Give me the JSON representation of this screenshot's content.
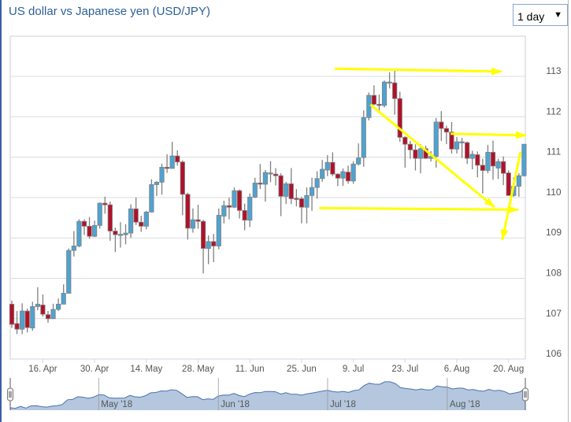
{
  "header": {
    "title": "US dollar vs Japanese yen (USD/JPY)",
    "range_select": "1 day"
  },
  "colors": {
    "up": "#4ea3d1",
    "down": "#b0112a",
    "wick": "#808080",
    "grid": "#dcdcdc",
    "annotation": "#ffff00",
    "navigator_fill": "#b5c7de",
    "navigator_line": "#4a72b0"
  },
  "chart_data": {
    "type": "candlestick",
    "title": "US dollar vs Japanese yen (USD/JPY)",
    "ylim": [
      106,
      113.2
    ],
    "yticks": [
      106,
      107,
      108,
      109,
      110,
      111,
      112,
      113
    ],
    "grid": true,
    "xticks": [
      {
        "index": 6,
        "label": "16. Apr"
      },
      {
        "index": 16,
        "label": "30. Apr"
      },
      {
        "index": 26,
        "label": "14. May"
      },
      {
        "index": 36,
        "label": "28. May"
      },
      {
        "index": 46,
        "label": "11. Jun"
      },
      {
        "index": 56,
        "label": "25. Jun"
      },
      {
        "index": 66,
        "label": "9. Jul"
      },
      {
        "index": 76,
        "label": "23. Jul"
      },
      {
        "index": 86,
        "label": "6. Aug"
      },
      {
        "index": 96,
        "label": "20. Aug"
      }
    ],
    "ohlc": [
      [
        107.36,
        107.45,
        106.77,
        106.86
      ],
      [
        106.88,
        107.19,
        106.62,
        106.74
      ],
      [
        106.74,
        107.38,
        106.62,
        107.19
      ],
      [
        107.19,
        107.25,
        106.66,
        106.78
      ],
      [
        106.77,
        107.42,
        106.7,
        107.3
      ],
      [
        107.3,
        107.78,
        107.21,
        107.36
      ],
      [
        107.34,
        107.6,
        107.05,
        107.11
      ],
      [
        107.1,
        107.19,
        106.9,
        107.0
      ],
      [
        107.0,
        107.37,
        107.0,
        107.23
      ],
      [
        107.23,
        107.5,
        107.19,
        107.36
      ],
      [
        107.36,
        107.85,
        107.36,
        107.63
      ],
      [
        107.63,
        108.74,
        107.63,
        108.69
      ],
      [
        108.69,
        109.17,
        108.54,
        108.8
      ],
      [
        108.8,
        109.46,
        108.77,
        109.41
      ],
      [
        109.41,
        109.46,
        109.07,
        109.29
      ],
      [
        109.29,
        109.52,
        108.98,
        109.04
      ],
      [
        109.04,
        109.43,
        109.02,
        109.31
      ],
      [
        109.31,
        109.88,
        109.23,
        109.86
      ],
      [
        109.86,
        110.02,
        109.6,
        109.82
      ],
      [
        109.82,
        109.9,
        108.93,
        109.17
      ],
      [
        109.17,
        109.26,
        108.65,
        109.08
      ],
      [
        109.08,
        109.39,
        108.76,
        109.09
      ],
      [
        109.08,
        109.34,
        108.84,
        109.12
      ],
      [
        109.12,
        109.83,
        109.0,
        109.72
      ],
      [
        109.72,
        110.0,
        109.32,
        109.39
      ],
      [
        109.39,
        109.55,
        109.15,
        109.29
      ],
      [
        109.29,
        109.67,
        109.21,
        109.64
      ],
      [
        109.64,
        110.45,
        109.64,
        110.32
      ],
      [
        110.32,
        110.41,
        110.04,
        110.38
      ],
      [
        110.38,
        110.84,
        110.07,
        110.75
      ],
      [
        110.75,
        111.07,
        110.61,
        110.72
      ],
      [
        110.72,
        111.38,
        110.72,
        111.03
      ],
      [
        111.03,
        111.17,
        110.79,
        110.88
      ],
      [
        110.88,
        110.92,
        109.56,
        110.08
      ],
      [
        110.08,
        110.12,
        108.96,
        109.24
      ],
      [
        109.24,
        109.73,
        109.13,
        109.45
      ],
      [
        109.45,
        109.82,
        109.23,
        109.41
      ],
      [
        109.41,
        109.45,
        108.12,
        108.74
      ],
      [
        108.74,
        109.06,
        108.35,
        108.91
      ],
      [
        108.91,
        109.1,
        108.4,
        108.8
      ],
      [
        108.8,
        109.73,
        108.72,
        109.56
      ],
      [
        109.54,
        109.92,
        109.36,
        109.8
      ],
      [
        109.8,
        110.0,
        109.46,
        109.76
      ],
      [
        109.76,
        110.25,
        109.74,
        110.17
      ],
      [
        110.17,
        110.2,
        109.48,
        109.68
      ],
      [
        109.68,
        109.85,
        109.19,
        109.44
      ],
      [
        109.44,
        110.1,
        109.27,
        110.01
      ],
      [
        110.01,
        110.49,
        109.99,
        110.36
      ],
      [
        110.36,
        110.83,
        110.21,
        110.33
      ],
      [
        110.33,
        110.68,
        109.9,
        110.62
      ],
      [
        110.59,
        110.9,
        110.38,
        110.61
      ],
      [
        110.58,
        110.73,
        110.3,
        110.54
      ],
      [
        110.54,
        110.6,
        109.54,
        110.03
      ],
      [
        110.03,
        110.39,
        109.84,
        110.34
      ],
      [
        110.34,
        110.73,
        109.84,
        109.97
      ],
      [
        109.98,
        110.21,
        109.78,
        109.97
      ],
      [
        109.97,
        110.02,
        109.36,
        109.76
      ],
      [
        109.76,
        110.25,
        109.36,
        110.05
      ],
      [
        110.05,
        110.49,
        109.67,
        110.25
      ],
      [
        110.25,
        110.65,
        109.97,
        110.47
      ],
      [
        110.47,
        110.93,
        110.39,
        110.7
      ],
      [
        110.68,
        111.05,
        110.53,
        110.87
      ],
      [
        110.87,
        111.12,
        110.53,
        110.58
      ],
      [
        110.58,
        110.6,
        110.28,
        110.48
      ],
      [
        110.48,
        110.72,
        110.29,
        110.64
      ],
      [
        110.63,
        110.79,
        110.34,
        110.41
      ],
      [
        110.41,
        110.9,
        110.34,
        110.83
      ],
      [
        110.83,
        111.34,
        110.79,
        110.98
      ],
      [
        110.99,
        112.16,
        110.76,
        111.98
      ],
      [
        111.98,
        112.6,
        111.91,
        112.53
      ],
      [
        112.53,
        112.78,
        112.28,
        112.31
      ],
      [
        112.31,
        112.55,
        112.16,
        112.28
      ],
      [
        112.28,
        112.9,
        112.23,
        112.86
      ],
      [
        112.84,
        113.1,
        112.7,
        112.86
      ],
      [
        112.84,
        113.15,
        112.05,
        112.45
      ],
      [
        112.45,
        112.62,
        111.38,
        111.49
      ],
      [
        111.49,
        111.52,
        110.74,
        111.32
      ],
      [
        111.32,
        111.4,
        110.96,
        111.18
      ],
      [
        111.18,
        111.32,
        110.67,
        110.97
      ],
      [
        110.97,
        111.32,
        110.6,
        111.21
      ],
      [
        111.21,
        111.28,
        110.96,
        110.97
      ],
      [
        110.97,
        111.15,
        110.89,
        111.02
      ],
      [
        111.02,
        111.97,
        110.74,
        111.87
      ],
      [
        111.87,
        112.14,
        111.4,
        111.71
      ],
      [
        111.71,
        111.78,
        111.32,
        111.62
      ],
      [
        111.62,
        111.87,
        111.09,
        111.2
      ],
      [
        111.2,
        111.5,
        111.09,
        111.38
      ],
      [
        111.37,
        111.48,
        110.98,
        111.38
      ],
      [
        111.36,
        111.39,
        110.83,
        110.97
      ],
      [
        110.97,
        111.16,
        110.7,
        111.07
      ],
      [
        111.06,
        111.14,
        110.5,
        110.8
      ],
      [
        110.8,
        110.96,
        110.1,
        110.67
      ],
      [
        110.67,
        111.3,
        110.6,
        111.12
      ],
      [
        111.12,
        111.41,
        110.44,
        110.78
      ],
      [
        110.73,
        110.96,
        110.46,
        110.89
      ],
      [
        110.89,
        111.02,
        110.31,
        110.6
      ],
      [
        110.61,
        110.67,
        110.05,
        110.05
      ],
      [
        110.05,
        110.5,
        110.02,
        110.28
      ],
      [
        110.28,
        110.6,
        110.02,
        110.54
      ],
      [
        110.54,
        111.32,
        110.52,
        111.32
      ]
    ],
    "annotations": [
      {
        "type": "arrow",
        "from": [
          62.4,
          113.19
        ],
        "to": [
          94.7,
          113.12
        ]
      },
      {
        "type": "arrow",
        "from": [
          69.3,
          112.3
        ],
        "to": [
          93.3,
          109.76
        ]
      },
      {
        "type": "arrow",
        "from": [
          84.8,
          111.58
        ],
        "to": [
          99.4,
          111.54
        ]
      },
      {
        "type": "arrow",
        "from": [
          59.4,
          109.74
        ],
        "to": [
          97.9,
          109.7
        ]
      },
      {
        "type": "arrow",
        "from": [
          98.3,
          111.13
        ],
        "to": [
          94.8,
          108.95
        ]
      }
    ],
    "navigator": {
      "labels": [
        {
          "index": 17,
          "label": "May '18"
        },
        {
          "index": 40,
          "label": "Jun '18"
        },
        {
          "index": 61,
          "label": "Jul '18"
        },
        {
          "index": 84,
          "label": "Aug '18"
        }
      ]
    }
  }
}
